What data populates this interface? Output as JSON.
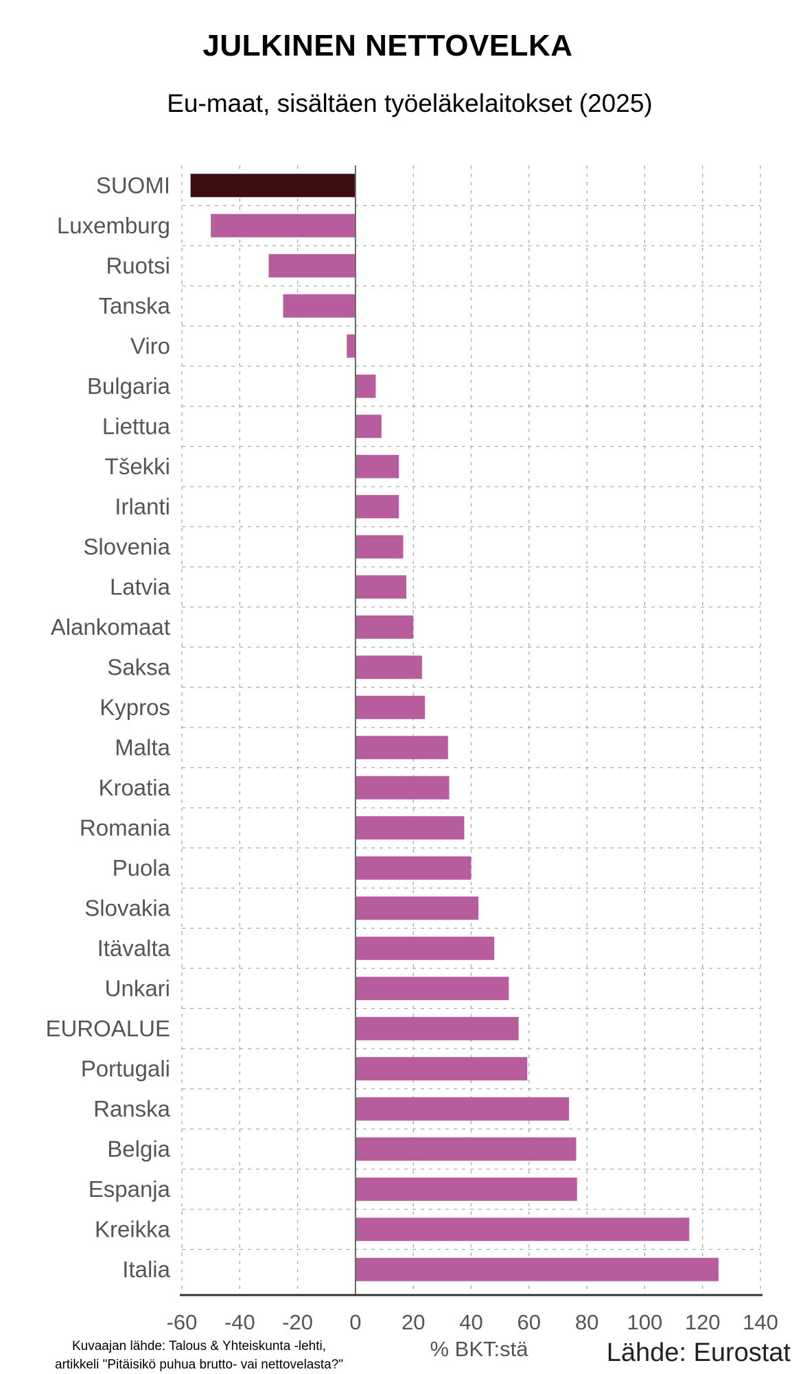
{
  "chart_data": {
    "type": "bar",
    "orientation": "horizontal",
    "title": "JULKINEN NETTOVELKA",
    "subtitle": "Eu-maat, sisältäen työeläkelaitokset (2025)",
    "xlabel": "% BKT:stä",
    "ylabel": "",
    "xlim": [
      -60,
      140
    ],
    "xticks": [
      "-60",
      "-40",
      "-20",
      "0",
      "20",
      "40",
      "60",
      "80",
      "100",
      "120",
      "140"
    ],
    "grid": true,
    "categories": [
      "SUOMI",
      "Luxemburg",
      "Ruotsi",
      "Tanska",
      "Viro",
      "Bulgaria",
      "Liettua",
      "Tšekki",
      "Irlanti",
      "Slovenia",
      "Latvia",
      "Alankomaat",
      "Saksa",
      "Kypros",
      "Malta",
      "Kroatia",
      "Romania",
      "Puola",
      "Slovakia",
      "Itävalta",
      "Unkari",
      "EUROALUE",
      "Portugali",
      "Ranska",
      "Belgia",
      "Espanja",
      "Kreikka",
      "Italia"
    ],
    "values": [
      -57,
      -50,
      -30,
      -25,
      -3,
      7,
      9,
      15,
      15,
      16.5,
      17.6,
      20,
      23,
      24,
      32,
      32.4,
      37.6,
      40,
      42.5,
      48,
      53,
      56.4,
      59.4,
      73.8,
      76.3,
      76.6,
      115.4,
      125.5
    ],
    "colors": {
      "highlight": "#3d0e11",
      "default": "#b75d9e",
      "axis": "#333333",
      "grid": "#aaaaaa"
    },
    "highlight_category": "SUOMI"
  },
  "footer": {
    "chart_source_line1": "Kuvaajan lähde: Talous & Yhteiskunta -lehti,",
    "chart_source_line2": "artikkeli \"Pitäisikö puhua brutto- vai nettovelasta?\"",
    "data_source": "Lähde: Eurostat"
  }
}
